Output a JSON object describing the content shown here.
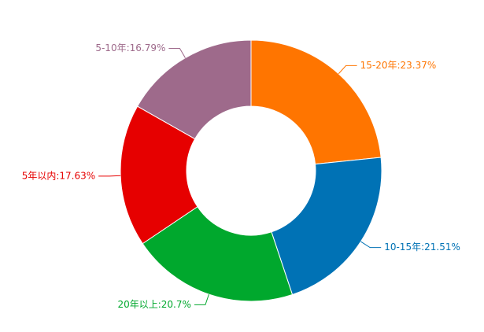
{
  "chart_data": {
    "type": "pie",
    "variant": "donut",
    "title": "",
    "legend": "none",
    "slices": [
      {
        "label": "15-20年:23.37%",
        "category": "15-20年",
        "value": 23.37,
        "color": "#ff7500"
      },
      {
        "label": "10-15年:21.51%",
        "category": "10-15年",
        "value": 21.51,
        "color": "#0072b5"
      },
      {
        "label": "20年以上:20.7%",
        "category": "20年以上",
        "value": 20.7,
        "color": "#00a82d"
      },
      {
        "label": "5年以内:17.63%",
        "category": "5年以内",
        "value": 17.63,
        "color": "#e60000"
      },
      {
        "label": "5-10年:16.79%",
        "category": "5-10年",
        "value": 16.79,
        "color": "#9e6a8b"
      }
    ]
  }
}
